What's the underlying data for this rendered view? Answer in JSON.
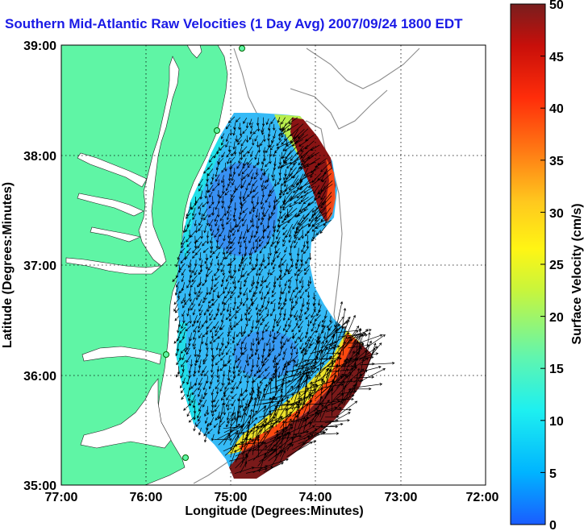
{
  "title": "Southern Mid-Atlantic Raw Velocities (1 Day Avg) 2007/09/24 1800 EDT",
  "axes": {
    "xlabel": "Longitude (Degrees:Minutes)",
    "ylabel": "Latitude (Degrees:Minutes)",
    "x_ticks": [
      "77:00",
      "76:00",
      "75:00",
      "74:00",
      "73:00",
      "72:00"
    ],
    "y_ticks": [
      "39:00",
      "38:00",
      "37:00",
      "36:00",
      "35:00"
    ]
  },
  "colorbar": {
    "label": "Surface Velocity (cm/s)",
    "ticks": [
      "50",
      "45",
      "40",
      "35",
      "30",
      "25",
      "20",
      "15",
      "10",
      "5",
      "0"
    ],
    "min": 0,
    "max": 50,
    "colors": [
      "#1a5cff",
      "#00b4ff",
      "#1ef0f0",
      "#5ff5b0",
      "#c8f53c",
      "#fff514",
      "#ffc81e",
      "#ff7814",
      "#ff2d0a",
      "#c80f0a",
      "#781e1e"
    ]
  },
  "colors": {
    "land": "#5ff5a5",
    "water_bg": "#ffffff",
    "vector": "#000000",
    "title": "#1a1ae6"
  }
}
